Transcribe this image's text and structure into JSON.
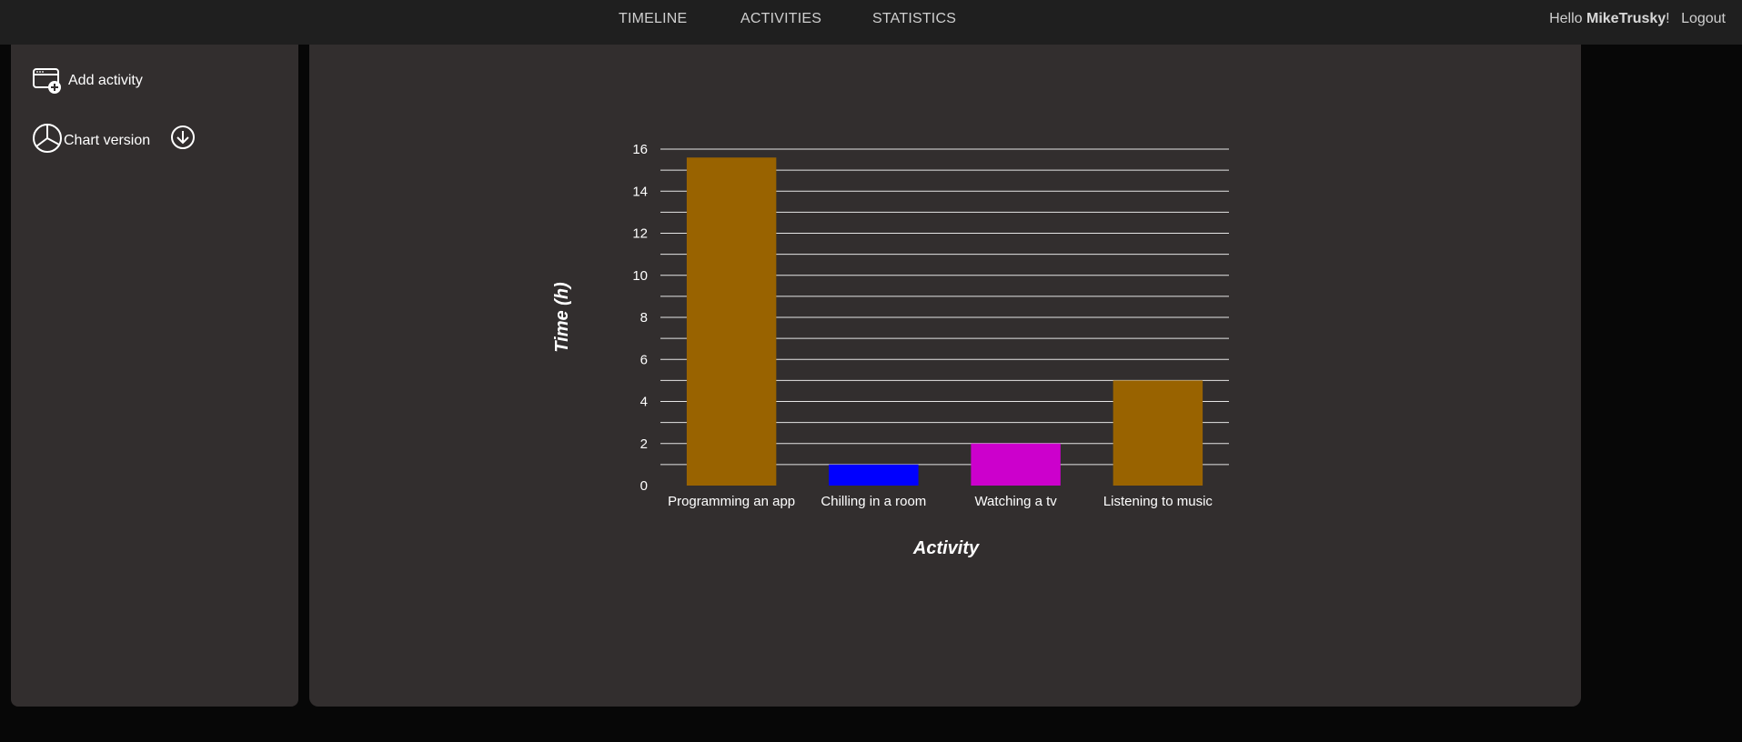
{
  "nav": {
    "links": [
      "TIMELINE",
      "ACTIVITIES",
      "STATISTICS"
    ],
    "greeting_prefix": "Hello ",
    "username": "MikeTrusky",
    "greeting_suffix": "!",
    "logout": "Logout"
  },
  "sidebar": {
    "add_activity": "Add activity",
    "chart_version": "Chart version"
  },
  "colors": {
    "topbar": "#1f1f1f",
    "panel": "#322e2e",
    "background": "#070707"
  },
  "chart_data": {
    "type": "bar",
    "categories": [
      "Programming an app",
      "Chilling in a room",
      "Watching a tv",
      "Listening to music"
    ],
    "values": [
      15.6,
      1,
      2,
      5
    ],
    "colors": [
      "#996300",
      "#0000ff",
      "#cc00cc",
      "#996300"
    ],
    "xlabel": "Activity",
    "ylabel": "Time (h)",
    "ylim": [
      0,
      16
    ],
    "yticks": [
      0,
      2,
      4,
      6,
      8,
      10,
      12,
      14,
      16
    ],
    "gridlines_every": 1,
    "grid": true,
    "legend": "none"
  }
}
